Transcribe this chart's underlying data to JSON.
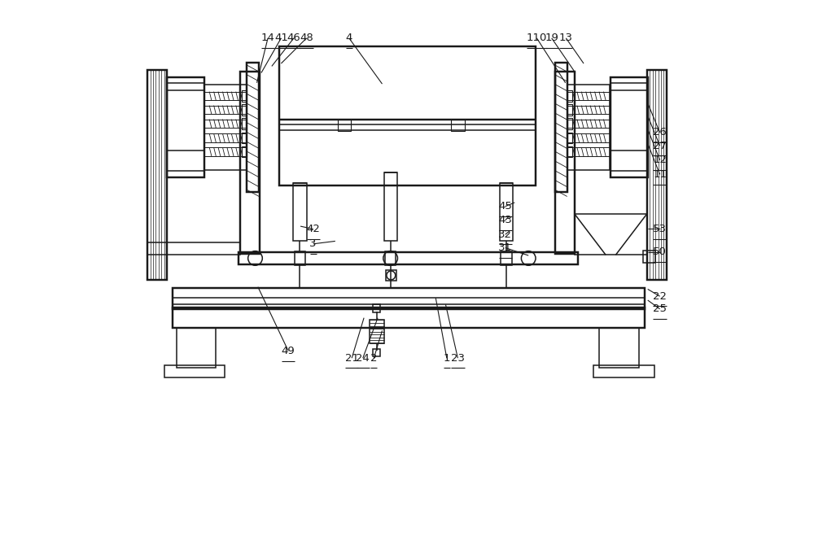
{
  "bg_color": "#ffffff",
  "line_color": "#1a1a1a",
  "lw": 1.1,
  "fig_width": 10.0,
  "fig_height": 6.81,
  "leaders": {
    "14": [
      0.228,
      0.148,
      0.248,
      0.067
    ],
    "41": [
      0.236,
      0.13,
      0.272,
      0.067
    ],
    "46": [
      0.255,
      0.118,
      0.295,
      0.067
    ],
    "48": [
      0.272,
      0.113,
      0.318,
      0.067
    ],
    "4": [
      0.455,
      0.15,
      0.395,
      0.067
    ],
    "110": [
      0.787,
      0.148,
      0.735,
      0.067
    ],
    "19": [
      0.805,
      0.13,
      0.762,
      0.067
    ],
    "13": [
      0.82,
      0.113,
      0.788,
      0.067
    ],
    "26": [
      0.936,
      0.185,
      0.958,
      0.238
    ],
    "27": [
      0.936,
      0.208,
      0.958,
      0.262
    ],
    "12": [
      0.936,
      0.232,
      0.958,
      0.288
    ],
    "11": [
      0.936,
      0.258,
      0.958,
      0.314
    ],
    "45": [
      0.695,
      0.365,
      0.678,
      0.372
    ],
    "43": [
      0.685,
      0.39,
      0.678,
      0.397
    ],
    "53": [
      0.936,
      0.413,
      0.958,
      0.413
    ],
    "32": [
      0.684,
      0.418,
      0.678,
      0.423
    ],
    "42": [
      0.307,
      0.408,
      0.33,
      0.413
    ],
    "3": [
      0.37,
      0.435,
      0.33,
      0.44
    ],
    "50": [
      0.936,
      0.455,
      0.958,
      0.455
    ],
    "31": [
      0.72,
      0.461,
      0.678,
      0.447
    ],
    "22": [
      0.936,
      0.522,
      0.958,
      0.535
    ],
    "25": [
      0.936,
      0.542,
      0.958,
      0.558
    ],
    "49": [
      0.23,
      0.518,
      0.285,
      0.634
    ],
    "21": [
      0.422,
      0.574,
      0.4,
      0.647
    ],
    "24": [
      0.447,
      0.574,
      0.42,
      0.647
    ],
    "2": [
      0.455,
      0.597,
      0.44,
      0.647
    ],
    "1": [
      0.552,
      0.538,
      0.572,
      0.647
    ],
    "23": [
      0.57,
      0.55,
      0.592,
      0.647
    ]
  }
}
